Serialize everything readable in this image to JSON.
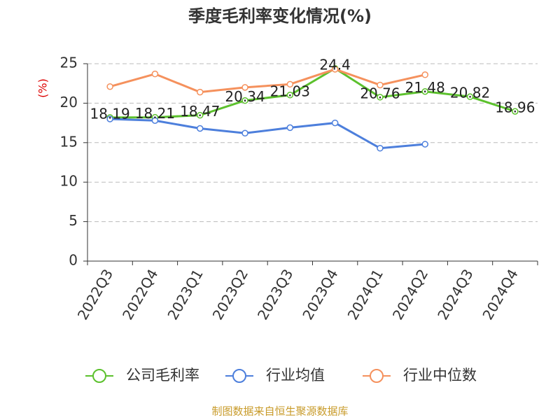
{
  "chart_data": {
    "type": "line",
    "title": "季度毛利率变化情况(%)",
    "y_label": "(%)",
    "categories": [
      "2022Q3",
      "2022Q4",
      "2023Q1",
      "2023Q2",
      "2023Q3",
      "2023Q4",
      "2024Q1",
      "2024Q2",
      "2024Q3",
      "2024Q4"
    ],
    "series": [
      {
        "name": "公司毛利率",
        "color": "#5cc12d",
        "values": [
          18.19,
          18.21,
          18.47,
          20.34,
          21.03,
          24.4,
          20.76,
          21.48,
          20.82,
          18.96
        ],
        "labels": true
      },
      {
        "name": "行业均值",
        "color": "#4d7fdc",
        "values": [
          18.0,
          17.8,
          16.8,
          16.2,
          16.9,
          17.5,
          14.3,
          14.8,
          null,
          null
        ]
      },
      {
        "name": "行业中位数",
        "color": "#f5915d",
        "values": [
          22.1,
          23.7,
          21.4,
          22.0,
          22.4,
          24.3,
          22.3,
          23.6,
          null,
          null
        ]
      }
    ],
    "ylim": [
      0,
      25
    ],
    "yticks": [
      0,
      5,
      10,
      15,
      20,
      25
    ],
    "grid": true,
    "source": "制图数据来自恒生聚源数据库"
  }
}
